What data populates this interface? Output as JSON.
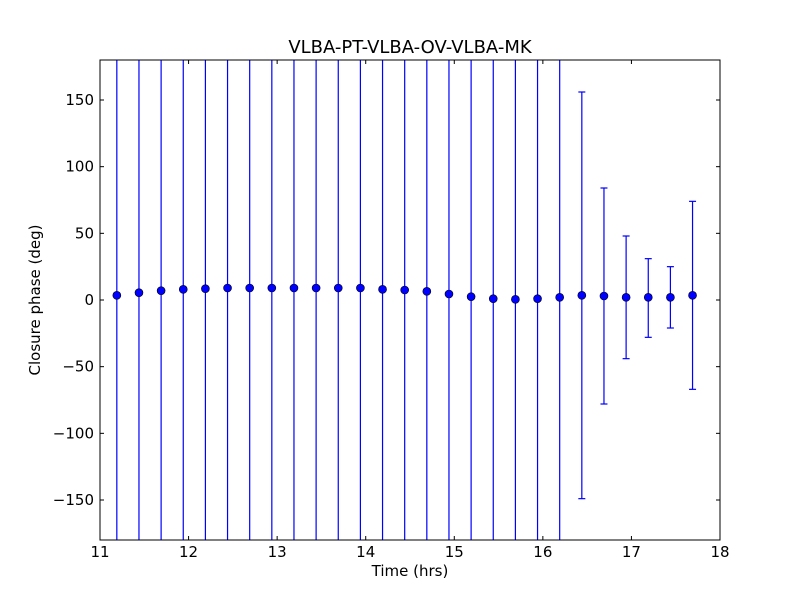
{
  "chart_data": {
    "type": "scatter",
    "title": "VLBA-PT-VLBA-OV-VLBA-MK",
    "xlabel": "Time (hrs)",
    "ylabel": "Closure phase (deg)",
    "xlim": [
      11,
      18
    ],
    "ylim": [
      -180,
      180
    ],
    "xticks": [
      11,
      12,
      13,
      14,
      15,
      16,
      17,
      18
    ],
    "xtick_labels": [
      "11",
      "12",
      "13",
      "14",
      "15",
      "16",
      "17",
      "18"
    ],
    "yticks": [
      150,
      100,
      50,
      0,
      -50,
      -100,
      -150
    ],
    "ytick_labels": [
      "150",
      "100",
      "50",
      "0",
      "−50",
      "−100",
      "−150"
    ],
    "grid": false,
    "marker_color": "#0000ff",
    "errorbar_color": "#0000ff",
    "series": [
      {
        "points": [
          {
            "x": 11.19,
            "y": 3.5,
            "ylo": -180,
            "yhi": 180
          },
          {
            "x": 11.44,
            "y": 5.5,
            "ylo": -180,
            "yhi": 180
          },
          {
            "x": 11.69,
            "y": 7.0,
            "ylo": -180,
            "yhi": 180
          },
          {
            "x": 11.94,
            "y": 8.0,
            "ylo": -180,
            "yhi": 180
          },
          {
            "x": 12.19,
            "y": 8.5,
            "ylo": -180,
            "yhi": 180
          },
          {
            "x": 12.44,
            "y": 9.0,
            "ylo": -180,
            "yhi": 180
          },
          {
            "x": 12.69,
            "y": 9.0,
            "ylo": -180,
            "yhi": 180
          },
          {
            "x": 12.94,
            "y": 9.0,
            "ylo": -180,
            "yhi": 180
          },
          {
            "x": 13.19,
            "y": 9.0,
            "ylo": -180,
            "yhi": 180
          },
          {
            "x": 13.44,
            "y": 9.0,
            "ylo": -180,
            "yhi": 180
          },
          {
            "x": 13.69,
            "y": 9.0,
            "ylo": -180,
            "yhi": 180
          },
          {
            "x": 13.94,
            "y": 9.0,
            "ylo": -180,
            "yhi": 180
          },
          {
            "x": 14.19,
            "y": 8.0,
            "ylo": -180,
            "yhi": 180
          },
          {
            "x": 14.44,
            "y": 7.5,
            "ylo": -180,
            "yhi": 180
          },
          {
            "x": 14.69,
            "y": 6.5,
            "ylo": -180,
            "yhi": 180
          },
          {
            "x": 14.94,
            "y": 4.5,
            "ylo": -180,
            "yhi": 180
          },
          {
            "x": 15.19,
            "y": 2.5,
            "ylo": -180,
            "yhi": 180
          },
          {
            "x": 15.44,
            "y": 1.0,
            "ylo": -180,
            "yhi": 180
          },
          {
            "x": 15.69,
            "y": 0.5,
            "ylo": -180,
            "yhi": 180
          },
          {
            "x": 15.94,
            "y": 1.0,
            "ylo": -180,
            "yhi": 180
          },
          {
            "x": 16.19,
            "y": 2.0,
            "ylo": -180,
            "yhi": 180
          },
          {
            "x": 16.44,
            "y": 3.5,
            "ylo": -149,
            "yhi": 156
          },
          {
            "x": 16.69,
            "y": 3.0,
            "ylo": -78,
            "yhi": 84
          },
          {
            "x": 16.94,
            "y": 2.0,
            "ylo": -44,
            "yhi": 48
          },
          {
            "x": 17.19,
            "y": 2.0,
            "ylo": -28,
            "yhi": 31
          },
          {
            "x": 17.44,
            "y": 2.0,
            "ylo": -21,
            "yhi": 25
          },
          {
            "x": 17.69,
            "y": 3.5,
            "ylo": -67,
            "yhi": 74
          }
        ]
      }
    ]
  }
}
